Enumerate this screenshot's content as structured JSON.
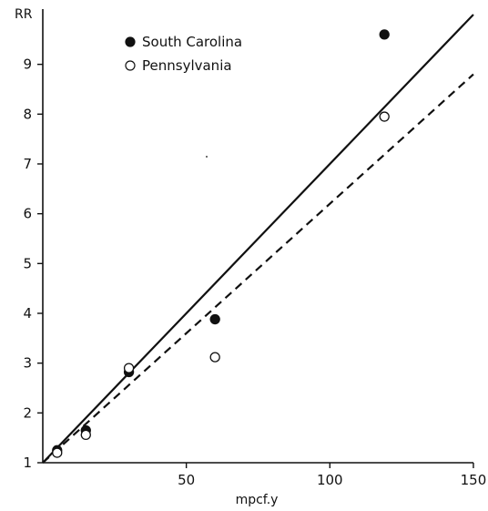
{
  "chart_data": {
    "type": "scatter",
    "xlabel": "mpcf.y",
    "ylabel": "RR",
    "xlim": [
      0,
      150
    ],
    "ylim": [
      1,
      10
    ],
    "xticks": [
      50,
      100,
      150
    ],
    "yticks": [
      1,
      2,
      3,
      4,
      5,
      6,
      7,
      8,
      9
    ],
    "grid": false,
    "legend_position": "top-left",
    "series": [
      {
        "name": "South Carolina",
        "marker": "filled-circle",
        "color": "#111111",
        "points": [
          {
            "x": 5,
            "y": 1.25
          },
          {
            "x": 15,
            "y": 1.65
          },
          {
            "x": 30,
            "y": 2.82
          },
          {
            "x": 60,
            "y": 3.88
          },
          {
            "x": 119,
            "y": 9.6
          }
        ],
        "fit_line": {
          "style": "solid",
          "x": [
            0,
            150
          ],
          "y": [
            1,
            10.0
          ]
        }
      },
      {
        "name": "Pennsylvania",
        "marker": "open-circle",
        "color": "#111111",
        "points": [
          {
            "x": 5,
            "y": 1.2
          },
          {
            "x": 15,
            "y": 1.56
          },
          {
            "x": 30,
            "y": 2.9
          },
          {
            "x": 60,
            "y": 3.12
          },
          {
            "x": 119,
            "y": 7.95
          }
        ],
        "fit_line": {
          "style": "dashed",
          "x": [
            0,
            150
          ],
          "y": [
            1,
            8.8
          ]
        }
      }
    ]
  }
}
